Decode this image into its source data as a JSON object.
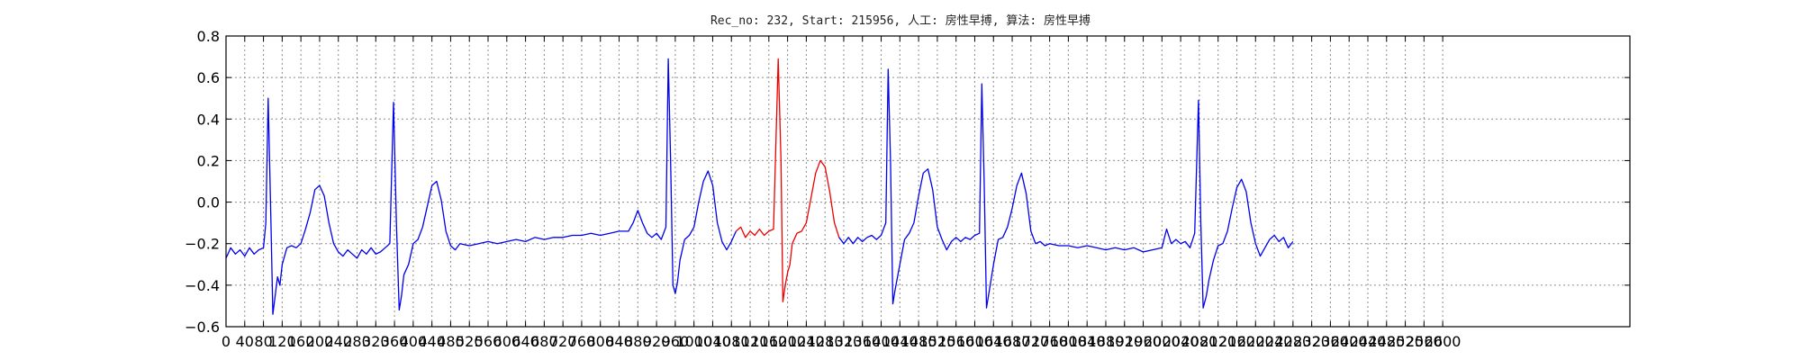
{
  "chart_data": {
    "type": "line",
    "title": "Rec_no: 232, Start: 215956, 人工: 房性早搏, 算法: 房性早搏",
    "xlabel": "",
    "ylabel": "",
    "xlim": [
      0,
      3000
    ],
    "ylim": [
      -0.6,
      0.8
    ],
    "y_ticks": [
      -0.6,
      -0.4,
      -0.2,
      0.0,
      0.2,
      0.4,
      0.6,
      0.8
    ],
    "y_tick_labels": [
      "−0.6",
      "−0.4",
      "−0.2",
      "0.0",
      "0.2",
      "0.4",
      "0.6",
      "0.8"
    ],
    "x_tick_step": 40,
    "x_tick_max": 2600,
    "grid": true,
    "colors": {
      "normal": "#0000ee",
      "highlight": "#ee0000"
    },
    "series": [
      {
        "color": "#0000ee",
        "points": [
          [
            0,
            -0.27
          ],
          [
            10,
            -0.22
          ],
          [
            20,
            -0.25
          ],
          [
            30,
            -0.23
          ],
          [
            40,
            -0.26
          ],
          [
            50,
            -0.22
          ],
          [
            60,
            -0.25
          ],
          [
            70,
            -0.23
          ],
          [
            80,
            -0.22
          ],
          [
            85,
            -0.1
          ],
          [
            90,
            0.5
          ],
          [
            96,
            -0.1
          ],
          [
            100,
            -0.54
          ],
          [
            105,
            -0.45
          ],
          [
            110,
            -0.36
          ],
          [
            115,
            -0.4
          ],
          [
            120,
            -0.3
          ],
          [
            130,
            -0.22
          ],
          [
            140,
            -0.21
          ],
          [
            150,
            -0.22
          ],
          [
            160,
            -0.2
          ],
          [
            170,
            -0.13
          ],
          [
            180,
            -0.05
          ],
          [
            190,
            0.06
          ],
          [
            200,
            0.08
          ],
          [
            210,
            0.03
          ],
          [
            220,
            -0.1
          ],
          [
            230,
            -0.2
          ],
          [
            240,
            -0.24
          ],
          [
            250,
            -0.26
          ],
          [
            260,
            -0.23
          ],
          [
            270,
            -0.25
          ],
          [
            280,
            -0.27
          ],
          [
            290,
            -0.23
          ],
          [
            300,
            -0.25
          ],
          [
            310,
            -0.22
          ],
          [
            320,
            -0.25
          ],
          [
            330,
            -0.24
          ],
          [
            340,
            -0.22
          ],
          [
            350,
            -0.2
          ],
          [
            358,
            0.48
          ],
          [
            364,
            -0.1
          ],
          [
            370,
            -0.52
          ],
          [
            375,
            -0.45
          ],
          [
            380,
            -0.35
          ],
          [
            390,
            -0.3
          ],
          [
            400,
            -0.2
          ],
          [
            410,
            -0.18
          ],
          [
            420,
            -0.12
          ],
          [
            430,
            -0.02
          ],
          [
            440,
            0.08
          ],
          [
            450,
            0.1
          ],
          [
            460,
            0.01
          ],
          [
            470,
            -0.14
          ],
          [
            480,
            -0.21
          ],
          [
            490,
            -0.23
          ],
          [
            500,
            -0.2
          ],
          [
            520,
            -0.21
          ],
          [
            540,
            -0.2
          ],
          [
            560,
            -0.19
          ],
          [
            580,
            -0.2
          ],
          [
            600,
            -0.19
          ],
          [
            620,
            -0.18
          ],
          [
            640,
            -0.19
          ],
          [
            660,
            -0.17
          ],
          [
            680,
            -0.18
          ],
          [
            700,
            -0.17
          ],
          [
            720,
            -0.17
          ],
          [
            740,
            -0.16
          ],
          [
            760,
            -0.16
          ],
          [
            780,
            -0.15
          ],
          [
            800,
            -0.16
          ],
          [
            820,
            -0.15
          ],
          [
            840,
            -0.14
          ],
          [
            860,
            -0.14
          ],
          [
            870,
            -0.1
          ],
          [
            880,
            -0.04
          ],
          [
            890,
            -0.1
          ],
          [
            900,
            -0.15
          ],
          [
            910,
            -0.17
          ],
          [
            920,
            -0.15
          ],
          [
            930,
            -0.18
          ],
          [
            940,
            -0.12
          ],
          [
            945,
            0.69
          ],
          [
            950,
            0.2
          ],
          [
            955,
            -0.4
          ],
          [
            960,
            -0.44
          ],
          [
            965,
            -0.38
          ],
          [
            970,
            -0.28
          ],
          [
            980,
            -0.18
          ],
          [
            990,
            -0.16
          ],
          [
            1000,
            -0.12
          ],
          [
            1010,
            0.0
          ],
          [
            1020,
            0.1
          ],
          [
            1030,
            0.15
          ],
          [
            1040,
            0.08
          ],
          [
            1050,
            -0.1
          ],
          [
            1060,
            -0.19
          ],
          [
            1070,
            -0.23
          ],
          [
            1080,
            -0.19
          ],
          [
            1090,
            -0.14
          ]
        ]
      },
      {
        "color": "#ee0000",
        "points": [
          [
            1090,
            -0.14
          ],
          [
            1100,
            -0.12
          ],
          [
            1110,
            -0.17
          ],
          [
            1120,
            -0.14
          ],
          [
            1130,
            -0.16
          ],
          [
            1140,
            -0.13
          ],
          [
            1150,
            -0.16
          ],
          [
            1160,
            -0.14
          ],
          [
            1170,
            -0.13
          ],
          [
            1180,
            0.69
          ],
          [
            1186,
            0.2
          ],
          [
            1190,
            -0.48
          ],
          [
            1195,
            -0.4
          ],
          [
            1200,
            -0.34
          ],
          [
            1205,
            -0.3
          ],
          [
            1210,
            -0.2
          ],
          [
            1220,
            -0.15
          ],
          [
            1230,
            -0.14
          ],
          [
            1240,
            -0.1
          ],
          [
            1250,
            0.02
          ],
          [
            1260,
            0.14
          ],
          [
            1270,
            0.2
          ],
          [
            1280,
            0.17
          ],
          [
            1290,
            0.05
          ],
          [
            1300,
            -0.1
          ],
          [
            1310,
            -0.17
          ]
        ]
      },
      {
        "color": "#0000ee",
        "points": [
          [
            1310,
            -0.17
          ],
          [
            1320,
            -0.2
          ],
          [
            1330,
            -0.17
          ],
          [
            1340,
            -0.2
          ],
          [
            1350,
            -0.17
          ],
          [
            1360,
            -0.19
          ],
          [
            1370,
            -0.17
          ],
          [
            1380,
            -0.16
          ],
          [
            1390,
            -0.18
          ],
          [
            1400,
            -0.16
          ],
          [
            1410,
            -0.1
          ],
          [
            1415,
            0.64
          ],
          [
            1420,
            0.2
          ],
          [
            1425,
            -0.49
          ],
          [
            1430,
            -0.42
          ],
          [
            1440,
            -0.3
          ],
          [
            1450,
            -0.18
          ],
          [
            1460,
            -0.15
          ],
          [
            1470,
            -0.1
          ],
          [
            1480,
            0.03
          ],
          [
            1490,
            0.14
          ],
          [
            1500,
            0.16
          ],
          [
            1510,
            0.06
          ],
          [
            1520,
            -0.12
          ],
          [
            1530,
            -0.18
          ],
          [
            1540,
            -0.23
          ],
          [
            1550,
            -0.19
          ],
          [
            1560,
            -0.17
          ],
          [
            1570,
            -0.19
          ],
          [
            1580,
            -0.17
          ],
          [
            1590,
            -0.18
          ],
          [
            1600,
            -0.16
          ],
          [
            1610,
            -0.15
          ],
          [
            1615,
            0.57
          ],
          [
            1620,
            0.1
          ],
          [
            1625,
            -0.51
          ],
          [
            1630,
            -0.44
          ],
          [
            1640,
            -0.3
          ],
          [
            1650,
            -0.18
          ],
          [
            1660,
            -0.17
          ],
          [
            1670,
            -0.12
          ],
          [
            1680,
            -0.03
          ],
          [
            1690,
            0.08
          ],
          [
            1700,
            0.14
          ],
          [
            1710,
            0.04
          ],
          [
            1720,
            -0.14
          ],
          [
            1730,
            -0.2
          ],
          [
            1740,
            -0.19
          ],
          [
            1750,
            -0.21
          ],
          [
            1760,
            -0.2
          ],
          [
            1780,
            -0.21
          ],
          [
            1800,
            -0.21
          ],
          [
            1820,
            -0.22
          ],
          [
            1840,
            -0.21
          ],
          [
            1860,
            -0.22
          ],
          [
            1880,
            -0.23
          ],
          [
            1900,
            -0.22
          ],
          [
            1920,
            -0.23
          ],
          [
            1940,
            -0.22
          ],
          [
            1960,
            -0.24
          ],
          [
            1980,
            -0.23
          ],
          [
            2000,
            -0.22
          ],
          [
            2010,
            -0.13
          ],
          [
            2020,
            -0.2
          ],
          [
            2030,
            -0.18
          ],
          [
            2040,
            -0.2
          ],
          [
            2050,
            -0.19
          ],
          [
            2060,
            -0.22
          ],
          [
            2070,
            -0.15
          ],
          [
            2078,
            0.49
          ],
          [
            2083,
            -0.1
          ],
          [
            2088,
            -0.51
          ],
          [
            2095,
            -0.45
          ],
          [
            2100,
            -0.38
          ],
          [
            2110,
            -0.28
          ],
          [
            2120,
            -0.21
          ],
          [
            2130,
            -0.2
          ],
          [
            2140,
            -0.14
          ],
          [
            2150,
            -0.03
          ],
          [
            2160,
            0.07
          ],
          [
            2170,
            0.11
          ],
          [
            2180,
            0.05
          ],
          [
            2190,
            -0.1
          ],
          [
            2200,
            -0.2
          ],
          [
            2210,
            -0.26
          ],
          [
            2220,
            -0.22
          ],
          [
            2230,
            -0.18
          ],
          [
            2240,
            -0.16
          ],
          [
            2250,
            -0.19
          ],
          [
            2260,
            -0.17
          ],
          [
            2270,
            -0.22
          ],
          [
            2280,
            -0.19
          ]
        ]
      }
    ]
  }
}
